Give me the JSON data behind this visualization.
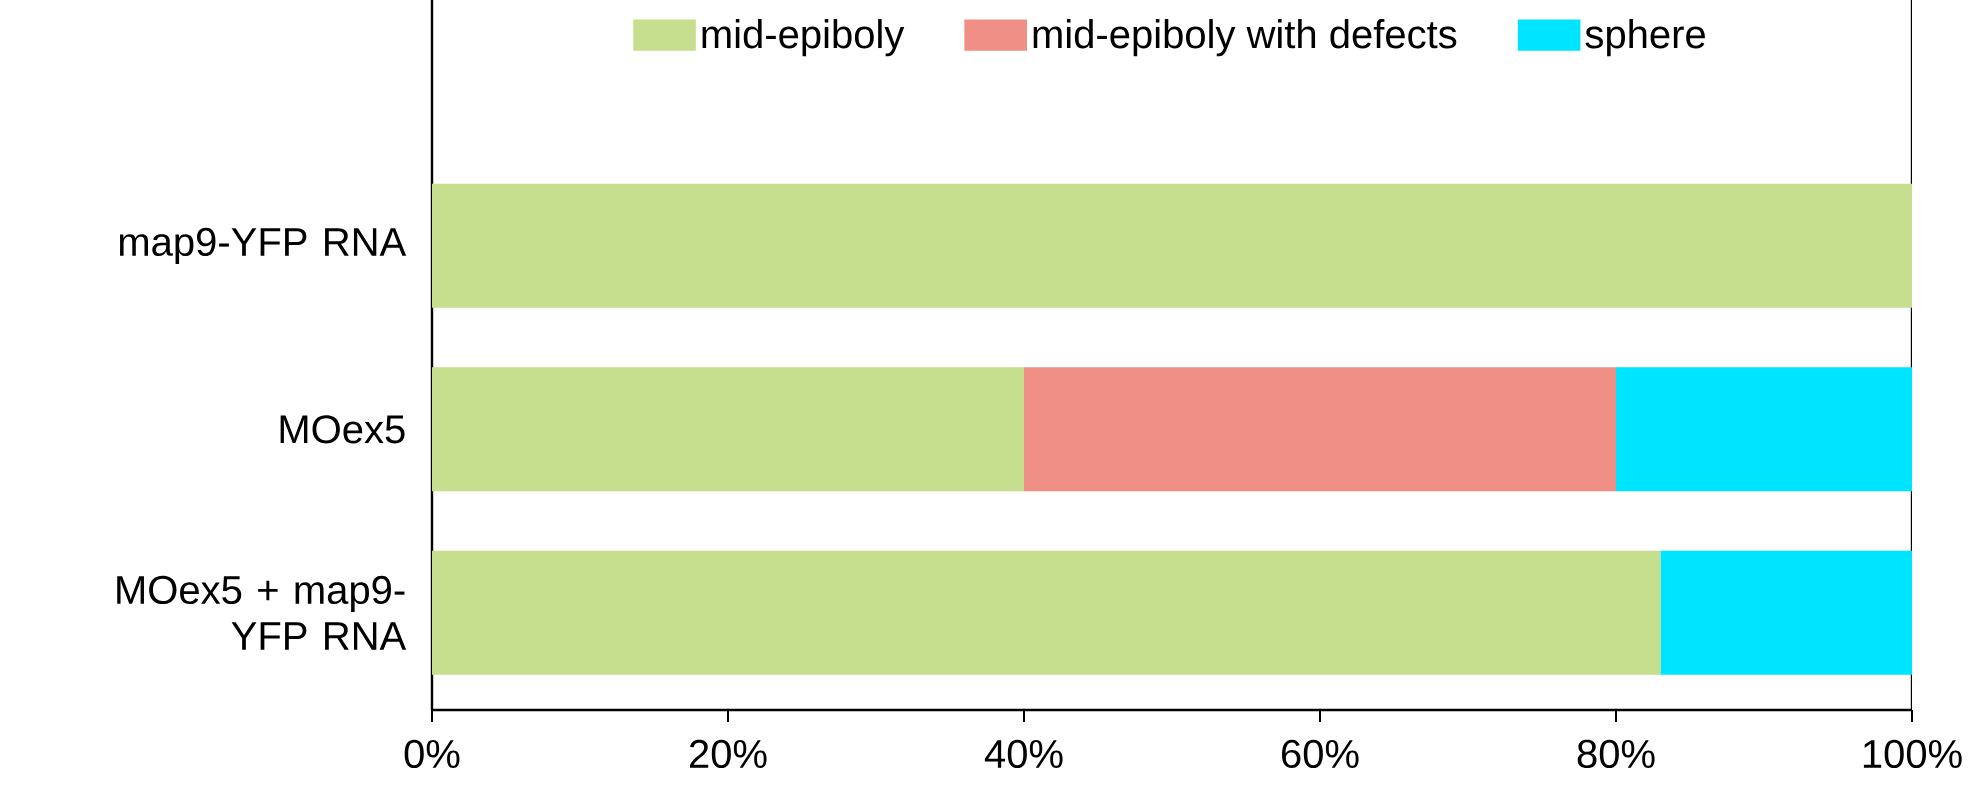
{
  "chart_data": {
    "type": "bar",
    "orientation": "horizontal",
    "stacked": true,
    "categories": [
      "map9-YFP RNA",
      "MOex5",
      "MOex5 + map9-YFP RNA"
    ],
    "series": [
      {
        "name": "mid-epiboly",
        "color": "#c5df8e",
        "values": [
          100,
          40,
          83
        ]
      },
      {
        "name": "mid-epiboly with defects",
        "color": "#ef8f85",
        "values": [
          0,
          40,
          0
        ]
      },
      {
        "name": "sphere",
        "color": "#00e5ff",
        "values": [
          0,
          20,
          17
        ]
      }
    ],
    "xlim": [
      0,
      100
    ],
    "xticks": [
      {
        "value": 0,
        "label": "0%"
      },
      {
        "value": 20,
        "label": "20%"
      },
      {
        "value": 40,
        "label": "40%"
      },
      {
        "value": 60,
        "label": "60%"
      },
      {
        "value": 80,
        "label": "80%"
      },
      {
        "value": 100,
        "label": "100%"
      }
    ],
    "legend": "top",
    "grid": false
  }
}
